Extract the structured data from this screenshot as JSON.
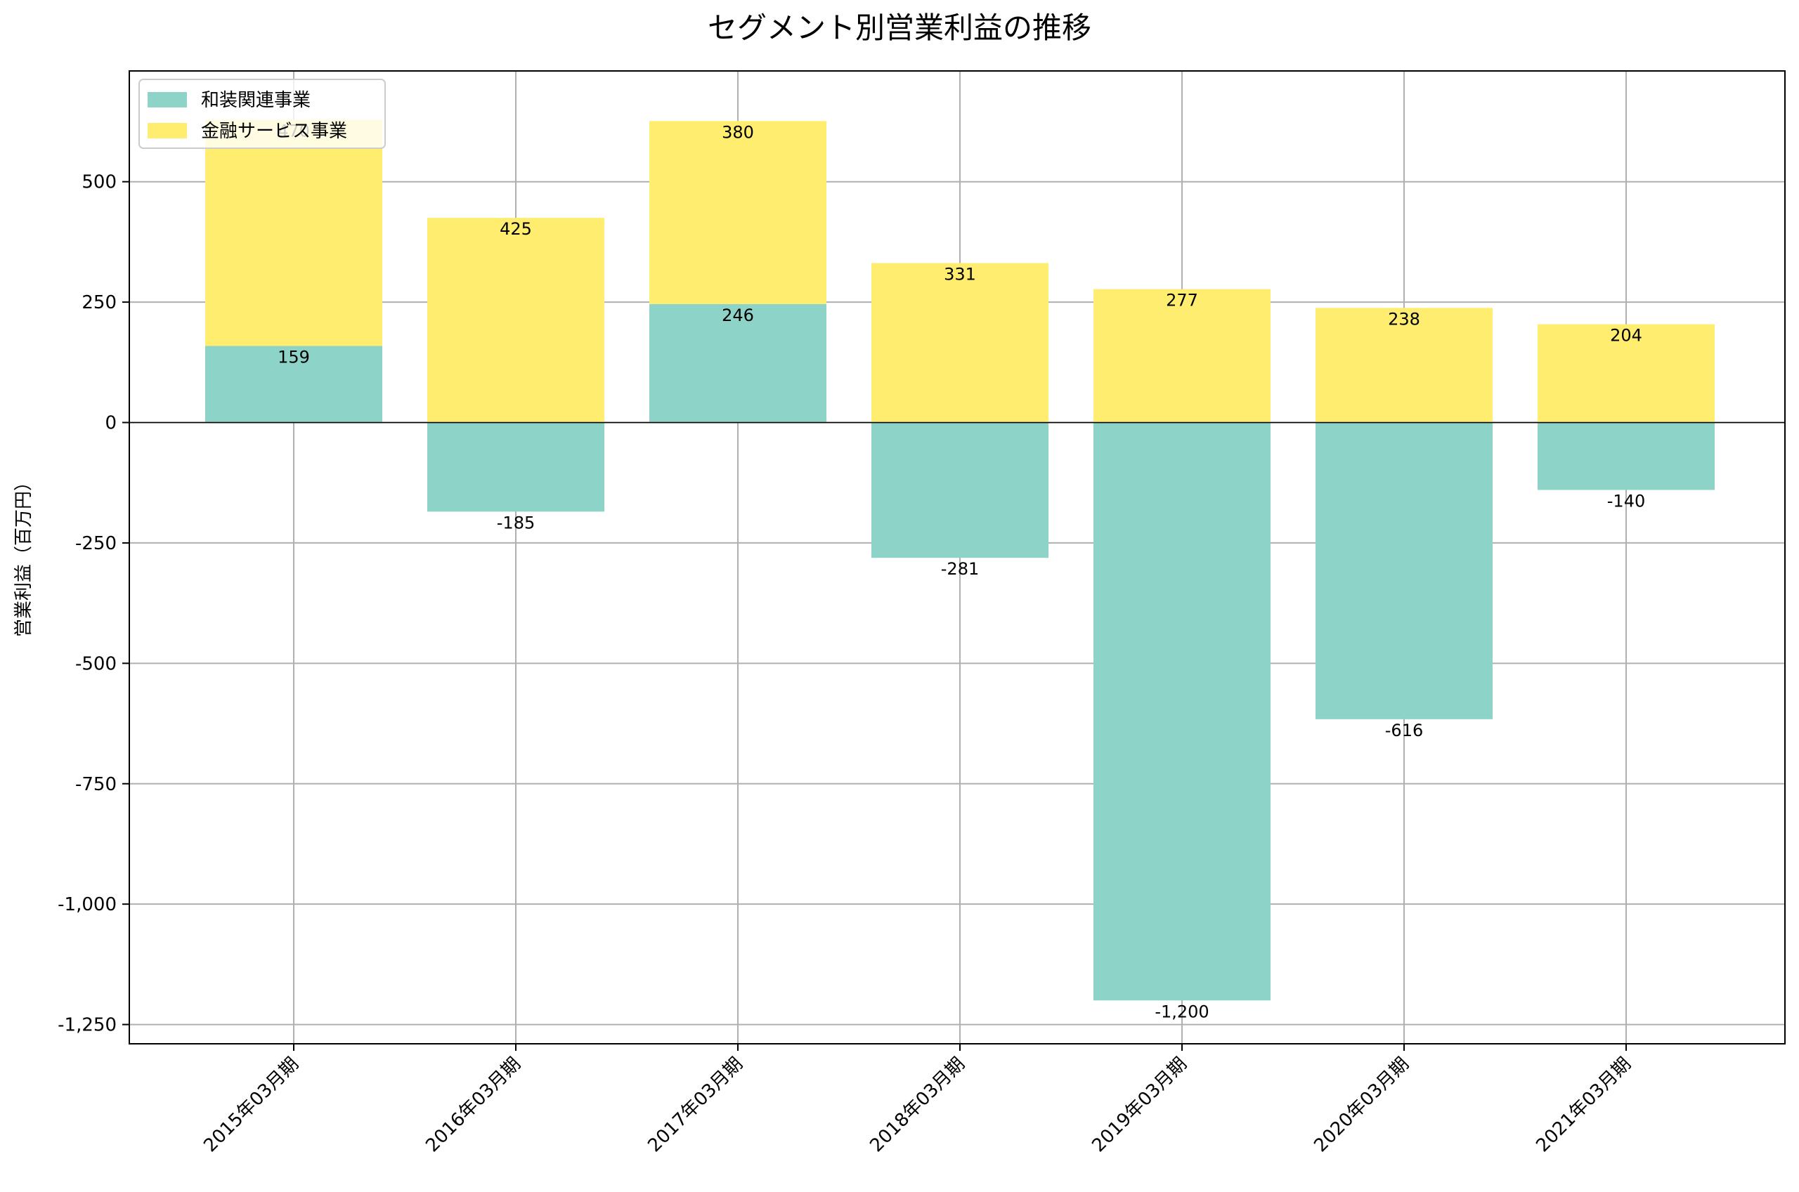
{
  "chart_data": {
    "type": "bar",
    "stacked": true,
    "title": "セグメント別営業利益の推移",
    "xlabel": "",
    "ylabel": "営業利益（百万円）",
    "categories": [
      "2015年03月期",
      "2016年03月期",
      "2017年03月期",
      "2018年03月期",
      "2019年03月期",
      "2020年03月期",
      "2021年03月期"
    ],
    "series": [
      {
        "name": "和装関連事業",
        "color": "#8dd3c7",
        "values": [
          159,
          -185,
          246,
          -281,
          -1200,
          -616,
          -140
        ],
        "labels": [
          "159",
          "-185",
          "246",
          "-281",
          "-1,200",
          "-616",
          "-140"
        ]
      },
      {
        "name": "金融サービス事業",
        "color": "#ffed6f",
        "values": [
          470,
          425,
          380,
          331,
          277,
          238,
          204
        ],
        "labels": [
          "470",
          "425",
          "380",
          "331",
          "277",
          "238",
          "204"
        ]
      }
    ],
    "ylim": [
      -1290,
      730
    ],
    "yticks": [
      500,
      250,
      0,
      -250,
      -500,
      -750,
      -1000,
      -1250
    ],
    "ytick_labels": [
      "500",
      "250",
      "0",
      "-250",
      "-500",
      "-750",
      "-1,000",
      "-1,250"
    ],
    "grid": true,
    "legend": "top-left"
  }
}
